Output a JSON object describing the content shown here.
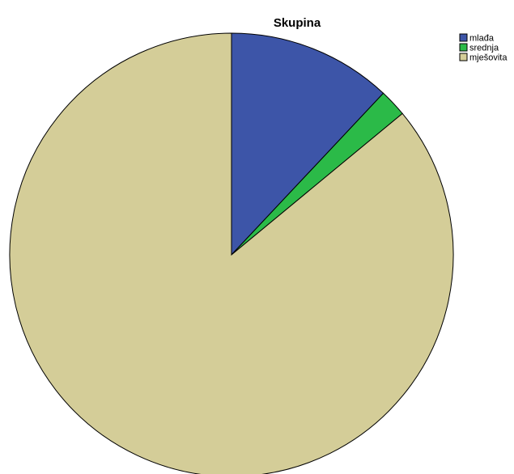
{
  "chart_data": {
    "type": "pie",
    "title": "Skupina",
    "legend_position": "top-right",
    "start_angle_deg": 0,
    "direction": "clockwise",
    "categories": [
      "mlađa",
      "srednja",
      "mješovita"
    ],
    "values": [
      12,
      2,
      86
    ],
    "colors": [
      "#3d55a8",
      "#2bba48",
      "#d4cd98"
    ]
  }
}
